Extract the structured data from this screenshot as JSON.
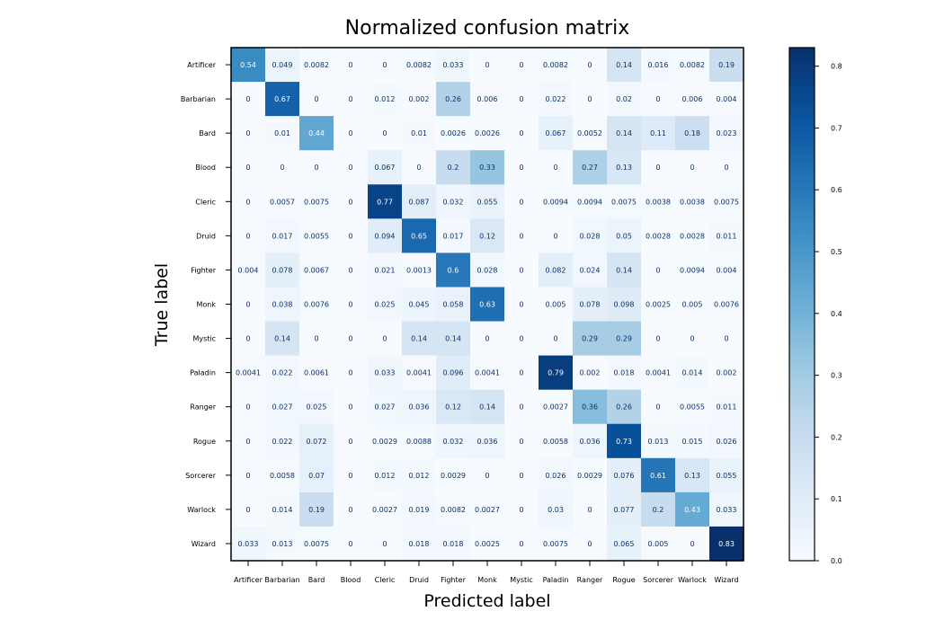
{
  "chart_data": {
    "type": "heatmap",
    "title": "Normalized confusion matrix",
    "xlabel": "Predicted label",
    "ylabel": "True label",
    "x_categories": [
      "Artificer",
      "Barbarian",
      "Bard",
      "Blood",
      "Cleric",
      "Druid",
      "Fighter",
      "Monk",
      "Mystic",
      "Paladin",
      "Ranger",
      "Rogue",
      "Sorcerer",
      "Warlock",
      "Wizard"
    ],
    "y_categories": [
      "Artificer",
      "Barbarian",
      "Bard",
      "Blood",
      "Cleric",
      "Druid",
      "Fighter",
      "Monk",
      "Mystic",
      "Paladin",
      "Ranger",
      "Rogue",
      "Sorcerer",
      "Warlock",
      "Wizard"
    ],
    "values": [
      [
        0.54,
        0.049,
        0.0082,
        0,
        0,
        0.0082,
        0.033,
        0,
        0,
        0.0082,
        0,
        0.14,
        0.016,
        0.0082,
        0.19
      ],
      [
        0,
        0.67,
        0,
        0,
        0.012,
        0.002,
        0.26,
        0.006,
        0,
        0.022,
        0,
        0.02,
        0,
        0.006,
        0.004
      ],
      [
        0,
        0.01,
        0.44,
        0,
        0,
        0.01,
        0.0026,
        0.0026,
        0,
        0.067,
        0.0052,
        0.14,
        0.11,
        0.18,
        0.023
      ],
      [
        0,
        0,
        0,
        0,
        0.067,
        0,
        0.2,
        0.33,
        0,
        0,
        0.27,
        0.13,
        0,
        0,
        0
      ],
      [
        0,
        0.0057,
        0.0075,
        0,
        0.77,
        0.087,
        0.032,
        0.055,
        0,
        0.0094,
        0.0094,
        0.0075,
        0.0038,
        0.0038,
        0.0075
      ],
      [
        0,
        0.017,
        0.0055,
        0,
        0.094,
        0.65,
        0.017,
        0.12,
        0,
        0,
        0.028,
        0.05,
        0.0028,
        0.0028,
        0.011
      ],
      [
        0.004,
        0.078,
        0.0067,
        0,
        0.021,
        0.0013,
        0.6,
        0.028,
        0,
        0.082,
        0.024,
        0.14,
        0,
        0.0094,
        0.004
      ],
      [
        0,
        0.038,
        0.0076,
        0,
        0.025,
        0.045,
        0.058,
        0.63,
        0,
        0.005,
        0.078,
        0.098,
        0.0025,
        0.005,
        0.0076
      ],
      [
        0,
        0.14,
        0,
        0,
        0,
        0.14,
        0.14,
        0,
        0,
        0,
        0.29,
        0.29,
        0,
        0,
        0
      ],
      [
        0.0041,
        0.022,
        0.0061,
        0,
        0.033,
        0.0041,
        0.096,
        0.0041,
        0,
        0.79,
        0.002,
        0.018,
        0.0041,
        0.014,
        0.002
      ],
      [
        0,
        0.027,
        0.025,
        0,
        0.027,
        0.036,
        0.12,
        0.14,
        0,
        0.0027,
        0.36,
        0.26,
        0,
        0.0055,
        0.011
      ],
      [
        0,
        0.022,
        0.072,
        0,
        0.0029,
        0.0088,
        0.032,
        0.036,
        0,
        0.0058,
        0.036,
        0.73,
        0.013,
        0.015,
        0.026
      ],
      [
        0,
        0.0058,
        0.07,
        0,
        0.012,
        0.012,
        0.0029,
        0,
        0,
        0.026,
        0.0029,
        0.076,
        0.61,
        0.13,
        0.055
      ],
      [
        0,
        0.014,
        0.19,
        0,
        0.0027,
        0.019,
        0.0082,
        0.0027,
        0,
        0.03,
        0,
        0.077,
        0.2,
        0.43,
        0.033
      ],
      [
        0.033,
        0.013,
        0.0075,
        0,
        0,
        0.018,
        0.018,
        0.0025,
        0,
        0.0075,
        0,
        0.065,
        0.005,
        0,
        0.83
      ]
    ],
    "colormap": "Blues",
    "colorbar": {
      "range": [
        0,
        0.83
      ],
      "ticks": [
        0.0,
        0.1,
        0.2,
        0.3,
        0.4,
        0.5,
        0.6,
        0.7,
        0.8
      ],
      "tick_labels": [
        "0.0",
        "0.1",
        "0.2",
        "0.3",
        "0.4",
        "0.5",
        "0.6",
        "0.7",
        "0.8"
      ]
    },
    "grid": false,
    "legend": "colorbar-right"
  }
}
